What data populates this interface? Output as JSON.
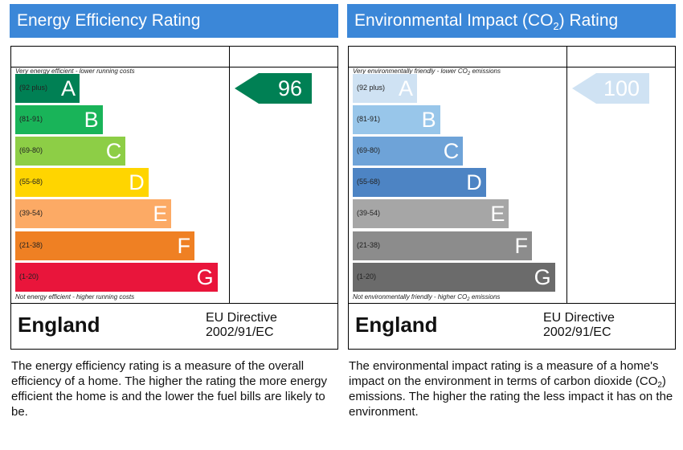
{
  "chart_data": [
    {
      "type": "rating-chart",
      "title": "Energy Efficiency Rating",
      "top_note": "Very energy efficient - lower running costs",
      "bottom_note": "Not energy efficient - higher running costs",
      "bands": [
        {
          "letter": "A",
          "range": "(92 plus)",
          "color": "#008054"
        },
        {
          "letter": "B",
          "range": "(81-91)",
          "color": "#19b459"
        },
        {
          "letter": "C",
          "range": "(69-80)",
          "color": "#8dce46"
        },
        {
          "letter": "D",
          "range": "(55-68)",
          "color": "#ffd500"
        },
        {
          "letter": "E",
          "range": "(39-54)",
          "color": "#fcaa65"
        },
        {
          "letter": "F",
          "range": "(21-38)",
          "color": "#ef8023"
        },
        {
          "letter": "G",
          "range": "(1-20)",
          "color": "#e9153b"
        }
      ],
      "current_value": 96,
      "current_band": "A",
      "arrow_color": "#008054",
      "region": "England",
      "directive": [
        "EU Directive",
        "2002/91/EC"
      ],
      "description": "The energy efficiency rating is a measure of the overall efficiency of a home. The higher the rating the more energy efficient the home is and the lower the fuel bills are likely to be."
    },
    {
      "type": "rating-chart",
      "title": "Environmental Impact (CO2) Rating",
      "top_note": "Very environmentally friendly - lower CO2 emissions",
      "bottom_note": "Not environmentally friendly - higher CO2 emissions",
      "bands": [
        {
          "letter": "A",
          "range": "(92 plus)",
          "color": "#cfe2f3"
        },
        {
          "letter": "B",
          "range": "(81-91)",
          "color": "#98c6ea"
        },
        {
          "letter": "C",
          "range": "(69-80)",
          "color": "#6ea3d8"
        },
        {
          "letter": "D",
          "range": "(55-68)",
          "color": "#4d84c4"
        },
        {
          "letter": "E",
          "range": "(39-54)",
          "color": "#a6a6a6"
        },
        {
          "letter": "F",
          "range": "(21-38)",
          "color": "#8c8c8c"
        },
        {
          "letter": "G",
          "range": "(1-20)",
          "color": "#6b6b6b"
        }
      ],
      "current_value": 100,
      "current_band": "A",
      "arrow_color": "#cfe2f3",
      "region": "England",
      "directive": [
        "EU Directive",
        "2002/91/EC"
      ],
      "description": "The environmental impact rating is a measure of a home's impact on the environment in terms of carbon dioxide (CO2) emissions. The higher the rating the less impact it has on the environment."
    }
  ],
  "colors": {
    "header_bg": "#3b87d8",
    "header_text": "#ffffff"
  }
}
